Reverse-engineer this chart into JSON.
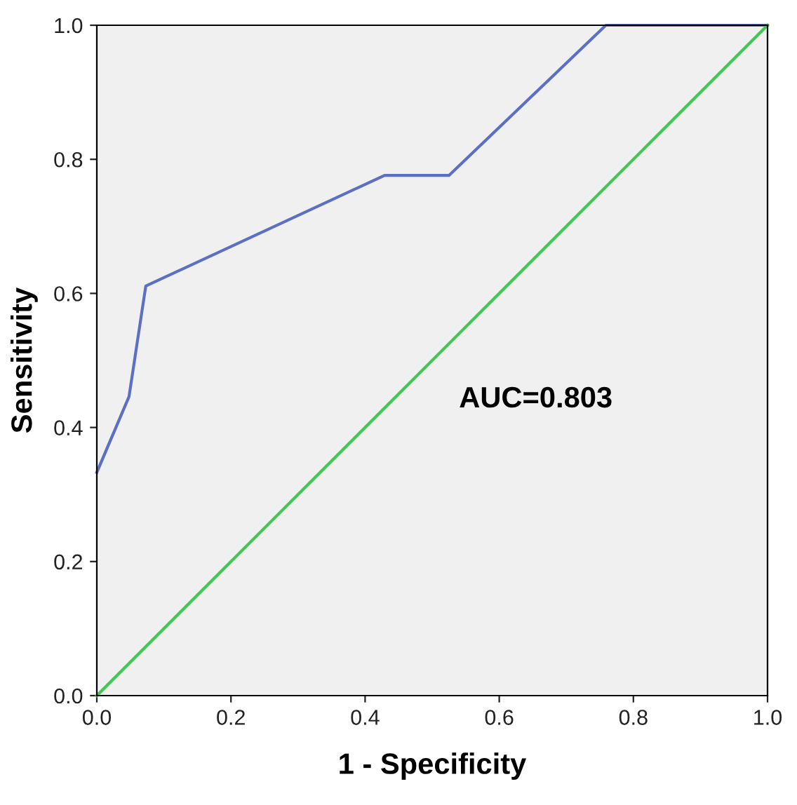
{
  "chart_data": {
    "type": "line",
    "xlabel": "1 - Specificity",
    "ylabel": "Sensitivity",
    "series": [
      {
        "color": "#5b6fc3",
        "x": [
          0,
          0.048,
          0.073,
          0.429,
          0.525,
          0.759,
          1.0
        ],
        "values": [
          0.333,
          0.446,
          0.611,
          0.776,
          0.776,
          1.0,
          1.0
        ]
      },
      {
        "color": "#3fc74f",
        "x": [
          0,
          1.0
        ],
        "values": [
          0,
          1.0
        ]
      }
    ],
    "annotations": [
      "AUC=0.803"
    ],
    "xlim": [
      0,
      1.0
    ],
    "ylim": [
      0,
      1.0
    ],
    "xticks": [
      {
        "value": 0,
        "label": "0.0"
      },
      {
        "value": 0.2,
        "label": "0.2"
      },
      {
        "value": 0.4,
        "label": "0.4"
      },
      {
        "value": 0.6,
        "label": "0.6"
      },
      {
        "value": 0.8,
        "label": "0.8"
      },
      {
        "value": 1.0,
        "label": "1.0"
      }
    ],
    "yticks": [
      {
        "value": 0,
        "label": "0.0"
      },
      {
        "value": 0.2,
        "label": "0.2"
      },
      {
        "value": 0.4,
        "label": "0.4"
      },
      {
        "value": 0.6,
        "label": "0.6"
      },
      {
        "value": 0.8,
        "label": "0.8"
      },
      {
        "value": 1.0,
        "label": "1.0"
      }
    ],
    "grid": false,
    "marker": "none",
    "line_style": "solid"
  }
}
